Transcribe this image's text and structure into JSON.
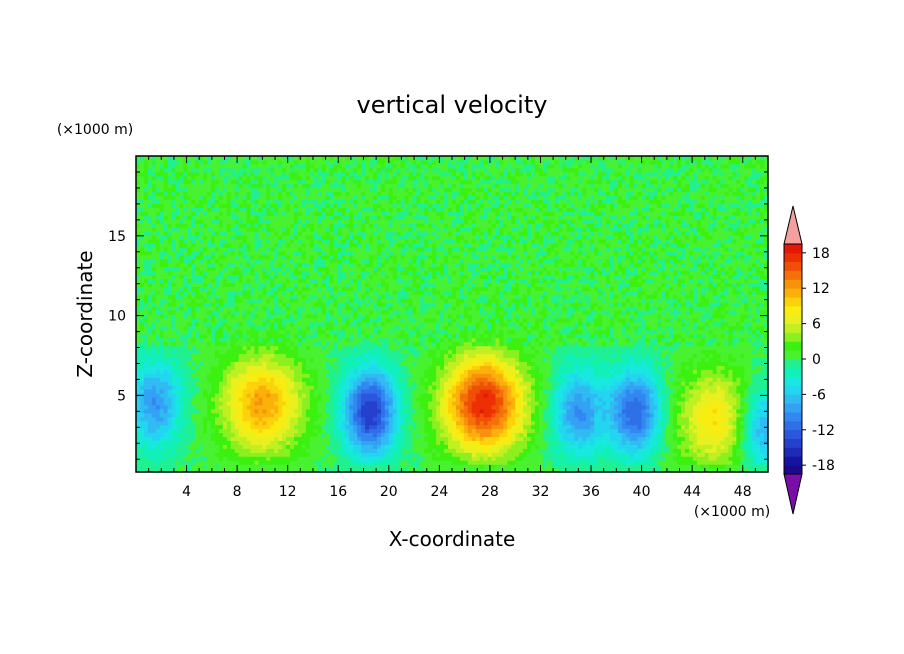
{
  "chart_data": {
    "type": "heatmap",
    "title": "vertical velocity",
    "xlabel": "X-coordinate",
    "ylabel": "Z-coordinate",
    "x_unit": "(×1000 m)",
    "y_unit": "(×1000 m)",
    "xlim": [
      0,
      50
    ],
    "ylim": [
      0.2,
      20
    ],
    "x_ticks": [
      4,
      8,
      12,
      16,
      20,
      24,
      28,
      32,
      36,
      40,
      44,
      48
    ],
    "y_ticks": [
      5,
      10,
      15
    ],
    "colorbar": {
      "levels": [
        -21,
        -19.5,
        -18,
        -16.5,
        -15,
        -13.5,
        -12,
        -10.5,
        -9,
        -7.5,
        -6,
        -4.5,
        -3,
        -1.5,
        0,
        1.5,
        3,
        4.5,
        6,
        7.5,
        9,
        10.5,
        12,
        13.5,
        15,
        16.5,
        18,
        19.5,
        21
      ],
      "tick_labels": [
        "-18",
        "-12",
        "-6",
        "0",
        "6",
        "12",
        "18"
      ],
      "tick_values": [
        -18,
        -12,
        -6,
        0,
        6,
        12,
        18
      ],
      "colors": [
        "#7a0ea8",
        "#1a0a90",
        "#16159f",
        "#1e2ab8",
        "#2440cc",
        "#2a57dd",
        "#2f70e8",
        "#3188f0",
        "#34a2f4",
        "#30bbf2",
        "#22d6ef",
        "#18e8e0",
        "#10f0b8",
        "#20f090",
        "#48f230",
        "#3cf010",
        "#8cf020",
        "#c0f020",
        "#e8f020",
        "#f8ec10",
        "#fcd20a",
        "#fcb00a",
        "#f8920a",
        "#f47008",
        "#f05006",
        "#ec3004",
        "#e41806",
        "#f4a0a0"
      ],
      "extend": "both"
    },
    "cells": {
      "description_rows": "z from 0.2 to 20 km, x from 0 to 50 km",
      "updrafts": [
        {
          "x": 10,
          "z": 4.5,
          "peak": 12
        },
        {
          "x": 27.5,
          "z": 4.5,
          "peak": 18
        },
        {
          "x": 46,
          "z": 3.5,
          "peak": 9
        }
      ],
      "downdrafts": [
        {
          "x": 1.5,
          "z": 4.5,
          "peak": -9
        },
        {
          "x": 18.5,
          "z": 4,
          "peak": -15
        },
        {
          "x": 35,
          "z": 4,
          "peak": -9
        },
        {
          "x": 39.5,
          "z": 4,
          "peak": -12
        },
        {
          "x": 49.5,
          "z": 3,
          "peak": -9
        }
      ]
    }
  }
}
